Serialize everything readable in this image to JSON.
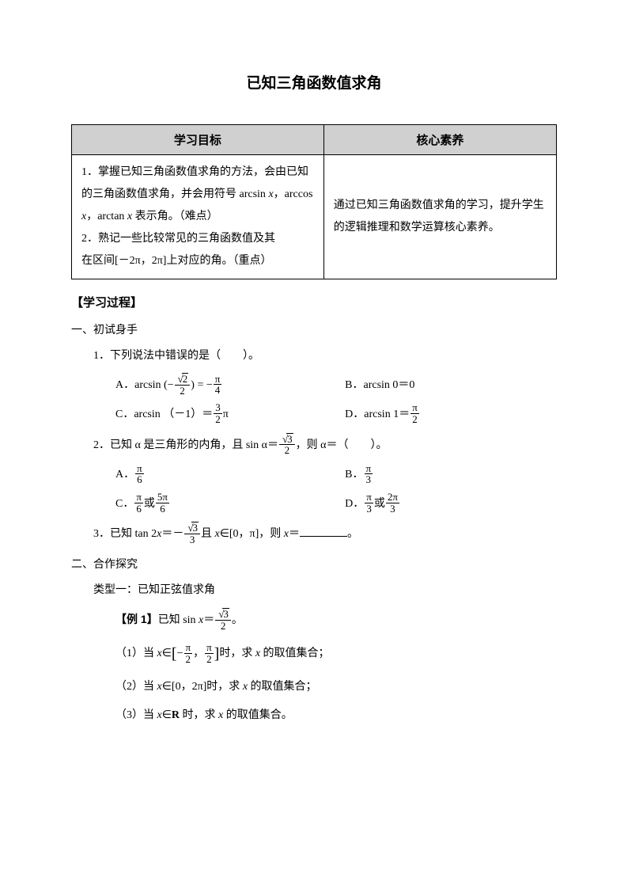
{
  "title": "已知三角函数值求角",
  "table": {
    "head_left": "学习目标",
    "head_right": "核心素养",
    "left_1": "1．掌握已知三角函数值求角的方法，会由已知的三角函数值求角，并会用符号 arcsin ",
    "left_1_tail": "，arccos ",
    "left_1_tail2": "，arctan ",
    "left_1_tail3": " 表示角。（难点）",
    "left_2a": "2．熟记一些比较常见的三角函数值及其",
    "left_2b": "在区间[－2π，2π]上对应的角。（重点）",
    "right_1": "通过已知三角函数值求角的学习，提升学生的逻辑推理和数学运算核心素养。"
  },
  "section_process": "【学习过程】",
  "s1": "一、初试身手",
  "q1": "1．下列说法中错误的是（　　）。",
  "q1A_pre": "A．arcsin",
  "q1B": "B．arcsin 0＝0",
  "q1C_pre": "C．arcsin （－1）＝",
  "q1D_pre": "D．arcsin 1＝",
  "q2_pre": "2．已知 α 是三角形的内角，且 sin α＝",
  "q2_post": "，则 α＝（　　）。",
  "q2A": "A．",
  "q2B": "B．",
  "q2C": "C．",
  "q2C_or": "或",
  "q2D": "D．",
  "q2D_or": "或",
  "q3_pre": "3．已知 tan 2",
  "q3_mid": "＝－",
  "q3_and": "且 ",
  "q3_in": "∈[0，π]，则 ",
  "q3_eq": "＝",
  "q3_end": "。",
  "s2": "二、合作探究",
  "type1": "类型一：已知正弦值求角",
  "ex1_label": "【例 1】",
  "ex1_text": "已知 sin ",
  "ex1_eq": "＝",
  "ex1_end": "。",
  "p1_pre": "（1）当 ",
  "p1_set_pre": "∈",
  "p1_post": "时，求 ",
  "p1_tail": " 的取值集合；",
  "p2_pre": "（2）当 ",
  "p2_set": "∈[0，2π]时，求 ",
  "p2_tail": " 的取值集合；",
  "p3_pre": "（3）当 ",
  "p3_set": "∈",
  "p3_R": "R",
  "p3_post": " 时，求 ",
  "p3_tail": " 的取值集合。",
  "x": "x"
}
